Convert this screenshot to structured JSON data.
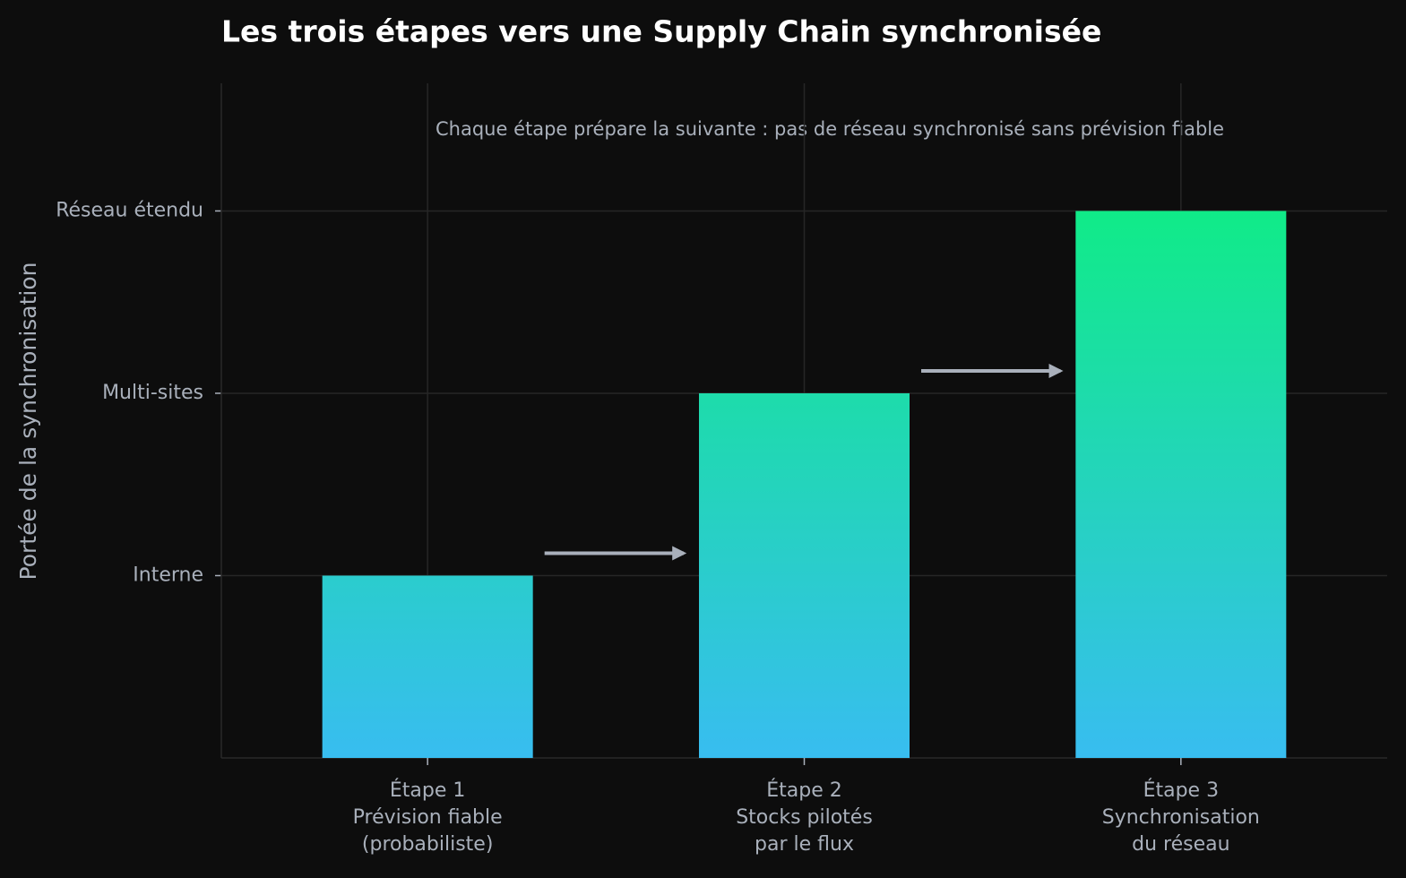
{
  "chart_data": {
    "type": "bar",
    "title": "Les trois étapes vers une Supply Chain synchronisée",
    "annotation": "Chaque étape prépare la suivante : pas de réseau synchronisé sans prévision fiable",
    "y_label": "Portée de la synchronisation",
    "categories": [
      "Étape 1\nPrévision fiable\n(probabiliste)",
      "Étape 2\nStocks pilotés\npar le flux",
      "Étape 3\nSynchronisation\ndu réseau"
    ],
    "values": [
      1,
      2,
      3
    ],
    "gradient": [
      "#38bdf0",
      "#10eb88"
    ],
    "ylim": [
      0,
      3.7
    ],
    "yticks": [
      {
        "value": 1,
        "label": "Interne"
      },
      {
        "value": 2,
        "label": "Multi-sites"
      },
      {
        "value": 3,
        "label": "Réseau étendu"
      }
    ],
    "grid": true
  }
}
